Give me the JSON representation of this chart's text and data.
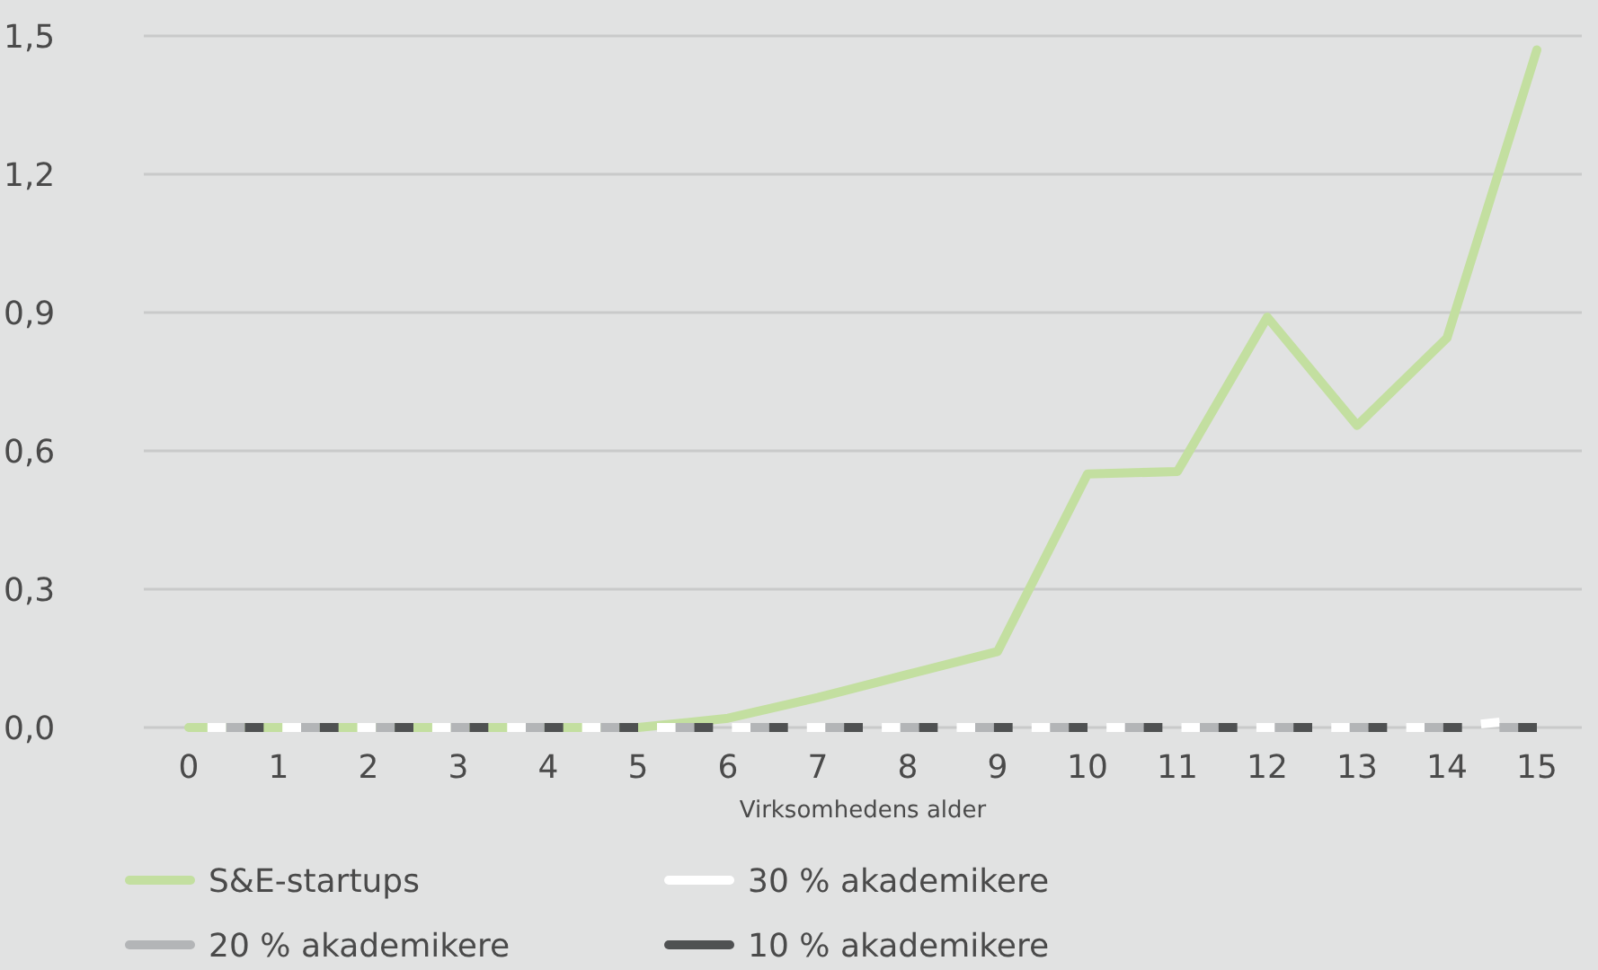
{
  "chart_data": {
    "type": "line",
    "xlabel": "Virksomhedens alder",
    "x": [
      0,
      1,
      2,
      3,
      4,
      5,
      6,
      7,
      8,
      9,
      10,
      11,
      12,
      13,
      14,
      15
    ],
    "xlim": [
      -0.5,
      15.5
    ],
    "xticks": [
      0,
      1,
      2,
      3,
      4,
      5,
      6,
      7,
      8,
      9,
      10,
      11,
      12,
      13,
      14,
      15
    ],
    "ylim": [
      0,
      1.5
    ],
    "yticks": [
      {
        "value": 0,
        "label": "0,0"
      },
      {
        "value": 0.3,
        "label": "0,3"
      },
      {
        "value": 0.6,
        "label": "0,6"
      },
      {
        "value": 0.9,
        "label": "0,9"
      },
      {
        "value": 1.2,
        "label": "1,2"
      },
      {
        "value": 1.5,
        "label": "1,5"
      }
    ],
    "grid": "y",
    "legend": "bottom",
    "marker": "none",
    "series": [
      {
        "name": "S&E-startups",
        "color": "#c3dfa0",
        "line_style": "solid",
        "values": [
          0,
          0,
          0,
          0,
          0,
          0,
          0.02,
          0.065,
          0.115,
          0.165,
          0.55,
          0.555,
          0.89,
          0.655,
          0.845,
          1.47
        ]
      },
      {
        "name": "30 % akademikere",
        "color": "#ffffff",
        "line_style": "dashed",
        "values": [
          0,
          0,
          0,
          0,
          0,
          0,
          0,
          0,
          0,
          0,
          0,
          0,
          0,
          0,
          0,
          0.02
        ]
      },
      {
        "name": "20 % akademikere",
        "color": "#b3b5b7",
        "line_style": "dashed",
        "values": [
          0,
          0,
          0,
          0,
          0,
          0,
          0,
          0,
          0,
          0,
          0,
          0,
          0,
          0,
          0,
          0
        ]
      },
      {
        "name": "10 % akademikere",
        "color": "#4f5152",
        "line_style": "dashed",
        "values": [
          0,
          0,
          0,
          0,
          0,
          0,
          0,
          0,
          0,
          0,
          0,
          0,
          0,
          0,
          0,
          0
        ]
      }
    ]
  }
}
